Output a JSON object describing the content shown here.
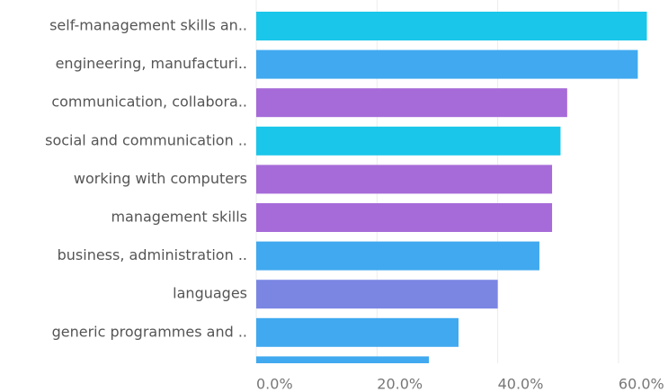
{
  "chart_data": {
    "type": "bar",
    "orientation": "horizontal",
    "categories": [
      "self-management skills an..",
      "engineering, manufacturi..",
      "communication, collabora..",
      "social and communication ..",
      "working with computers",
      "management skills",
      "business, administration ..",
      "languages",
      "generic programmes and ..",
      null
    ],
    "values": [
      64.7,
      63.2,
      51.5,
      50.4,
      49.0,
      49.0,
      46.9,
      40.0,
      33.5,
      28.6
    ],
    "colors": [
      "#1ac6ea",
      "#40a9ef",
      "#a66bd9",
      "#1ac6ea",
      "#a66bd9",
      "#a66bd9",
      "#40a9ef",
      "#7b86e3",
      "#40a9ef",
      "#40a9ef"
    ],
    "xlim": [
      0,
      68.2
    ],
    "xticks": [
      {
        "value": 0,
        "label": "0.0%"
      },
      {
        "value": 20,
        "label": "20.0%"
      },
      {
        "value": 40,
        "label": "40.0%"
      },
      {
        "value": 60,
        "label": "60.0%"
      }
    ],
    "grid": true
  }
}
